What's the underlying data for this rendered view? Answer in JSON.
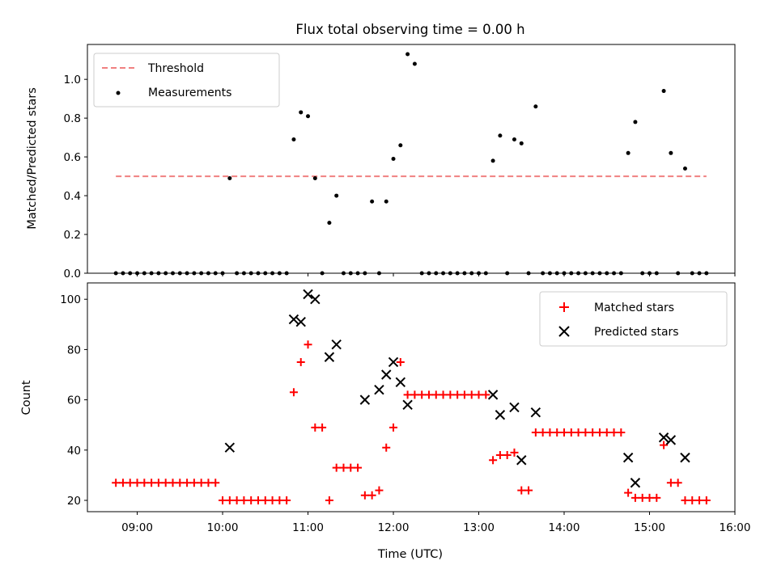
{
  "chart_data": [
    {
      "type": "scatter",
      "title": "Flux total observing time = 0.00 h",
      "xlabel": "",
      "ylabel": "Matched/Predicted stars",
      "xlim": [
        "08:25",
        "16:00"
      ],
      "ylim": [
        0,
        1.18
      ],
      "yticks": [
        0.0,
        0.2,
        0.4,
        0.6,
        0.8,
        1.0
      ],
      "grid": false,
      "legend_position": "upper left",
      "threshold": {
        "name": "Threshold",
        "value": 0.5,
        "x_range": [
          "08:45",
          "15:40"
        ],
        "color": "#f08080",
        "style": "dashed"
      },
      "series": [
        {
          "name": "Measurements",
          "color": "#000000",
          "marker": "dot",
          "x": [
            "08:45",
            "08:50",
            "08:55",
            "09:00",
            "09:05",
            "09:10",
            "09:15",
            "09:20",
            "09:25",
            "09:30",
            "09:35",
            "09:40",
            "09:45",
            "09:50",
            "09:55",
            "10:00",
            "10:05",
            "10:10",
            "10:15",
            "10:20",
            "10:25",
            "10:30",
            "10:35",
            "10:40",
            "10:45",
            "10:50",
            "10:55",
            "11:00",
            "11:05",
            "11:10",
            "11:15",
            "11:20",
            "11:25",
            "11:30",
            "11:35",
            "11:40",
            "11:45",
            "11:50",
            "11:55",
            "12:00",
            "12:05",
            "12:10",
            "12:15",
            "12:20",
            "12:25",
            "12:30",
            "12:35",
            "12:40",
            "12:45",
            "12:50",
            "12:55",
            "13:00",
            "13:05",
            "13:10",
            "13:15",
            "13:20",
            "13:25",
            "13:30",
            "13:35",
            "13:40",
            "13:45",
            "13:50",
            "13:55",
            "14:00",
            "14:05",
            "14:10",
            "14:15",
            "14:20",
            "14:25",
            "14:30",
            "14:35",
            "14:40",
            "14:45",
            "14:50",
            "14:55",
            "15:00",
            "15:05",
            "15:10",
            "15:15",
            "15:20",
            "15:25",
            "15:30",
            "15:35",
            "15:40"
          ],
          "y": [
            0,
            0,
            0,
            0,
            0,
            0,
            0,
            0,
            0,
            0,
            0,
            0,
            0,
            0,
            0,
            0,
            0.49,
            0,
            0,
            0,
            0,
            0,
            0,
            0,
            0,
            0.69,
            0.83,
            0.81,
            0.49,
            0,
            0.26,
            0.4,
            0,
            0,
            0,
            0,
            0.37,
            0,
            0.37,
            0.59,
            0.66,
            1.13,
            1.08,
            0,
            0,
            0,
            0,
            0,
            0,
            0,
            0,
            0,
            0,
            0.58,
            0.71,
            0,
            0.69,
            0.67,
            0,
            0.86,
            0,
            0,
            0,
            0,
            0,
            0,
            0,
            0,
            0,
            0,
            0,
            0,
            0.62,
            0.78,
            0,
            0,
            0,
            0.94,
            0.62,
            0,
            0.54,
            0,
            0,
            0
          ]
        }
      ]
    },
    {
      "type": "scatter",
      "xlabel": "Time (UTC)",
      "ylabel": "Count",
      "xlim": [
        "08:25",
        "16:00"
      ],
      "xticks": [
        "09:00",
        "10:00",
        "11:00",
        "12:00",
        "13:00",
        "14:00",
        "15:00",
        "16:00"
      ],
      "ylim": [
        15.5,
        106.5
      ],
      "yticks": [
        20,
        40,
        60,
        80,
        100
      ],
      "grid": false,
      "legend_position": "upper right",
      "series": [
        {
          "name": "Matched stars",
          "color": "#ff0000",
          "marker": "plus",
          "x": [
            "08:45",
            "08:50",
            "08:55",
            "09:00",
            "09:05",
            "09:10",
            "09:15",
            "09:20",
            "09:25",
            "09:30",
            "09:35",
            "09:40",
            "09:45",
            "09:50",
            "09:55",
            "10:00",
            "10:05",
            "10:10",
            "10:15",
            "10:20",
            "10:25",
            "10:30",
            "10:35",
            "10:40",
            "10:45",
            "10:50",
            "10:55",
            "11:00",
            "11:05",
            "11:10",
            "11:15",
            "11:20",
            "11:25",
            "11:30",
            "11:35",
            "11:40",
            "11:45",
            "11:50",
            "11:55",
            "12:00",
            "12:05",
            "12:10",
            "12:15",
            "12:20",
            "12:25",
            "12:30",
            "12:35",
            "12:40",
            "12:45",
            "12:50",
            "12:55",
            "13:00",
            "13:05",
            "13:10",
            "13:15",
            "13:20",
            "13:25",
            "13:30",
            "13:35",
            "13:40",
            "13:45",
            "13:50",
            "13:55",
            "14:00",
            "14:05",
            "14:10",
            "14:15",
            "14:20",
            "14:25",
            "14:30",
            "14:35",
            "14:40",
            "14:45",
            "14:50",
            "14:55",
            "15:00",
            "15:05",
            "15:10",
            "15:15",
            "15:20",
            "15:25",
            "15:30",
            "15:35",
            "15:40"
          ],
          "y": [
            27,
            27,
            27,
            27,
            27,
            27,
            27,
            27,
            27,
            27,
            27,
            27,
            27,
            27,
            27,
            20,
            20,
            20,
            20,
            20,
            20,
            20,
            20,
            20,
            20,
            63,
            75,
            82,
            49,
            49,
            20,
            33,
            33,
            33,
            33,
            22,
            22,
            24,
            41,
            49,
            75,
            62,
            62,
            62,
            62,
            62,
            62,
            62,
            62,
            62,
            62,
            62,
            62,
            36,
            38,
            38,
            39,
            24,
            24,
            47,
            47,
            47,
            47,
            47,
            47,
            47,
            47,
            47,
            47,
            47,
            47,
            47,
            23,
            21,
            21,
            21,
            21,
            42,
            27,
            27,
            20,
            20,
            20,
            20
          ]
        },
        {
          "name": "Predicted stars",
          "color": "#000000",
          "marker": "x",
          "x": [
            "10:05",
            "10:50",
            "10:55",
            "11:00",
            "11:05",
            "11:15",
            "11:20",
            "11:40",
            "11:50",
            "11:55",
            "12:00",
            "12:05",
            "12:10",
            "13:10",
            "13:15",
            "13:25",
            "13:30",
            "13:40",
            "14:45",
            "14:50",
            "15:10",
            "15:15",
            "15:25"
          ],
          "y": [
            41,
            92,
            91,
            102,
            100,
            77,
            82,
            60,
            64,
            70,
            75,
            67,
            58,
            62,
            54,
            57,
            36,
            55,
            37,
            27,
            45,
            44,
            37
          ]
        }
      ]
    }
  ]
}
